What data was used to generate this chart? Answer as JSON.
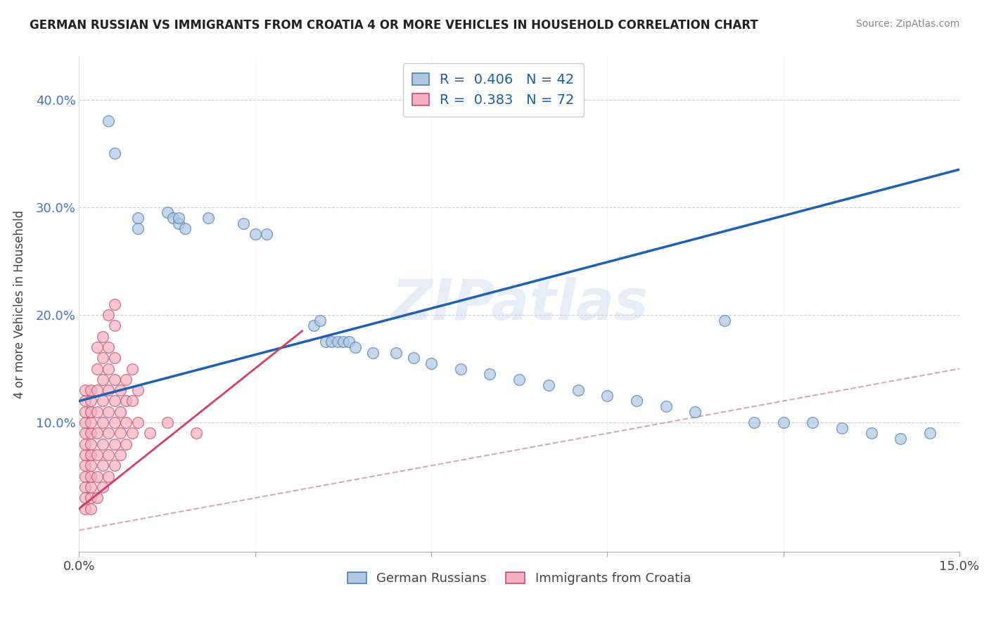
{
  "title": "GERMAN RUSSIAN VS IMMIGRANTS FROM CROATIA 4 OR MORE VEHICLES IN HOUSEHOLD CORRELATION CHART",
  "source": "Source: ZipAtlas.com",
  "ylabel": "4 or more Vehicles in Household",
  "xlim": [
    0,
    0.15
  ],
  "ylim": [
    -0.02,
    0.44
  ],
  "blue_color": "#aec6e0",
  "pink_color": "#f5afc0",
  "blue_edge_color": "#5080b0",
  "pink_edge_color": "#c05070",
  "blue_line_color": "#2060b0",
  "pink_line_color": "#d04060",
  "diag_color": "#d0a0b0",
  "watermark": "ZIPatlas",
  "legend_blue_label": "R =  0.406   N = 42",
  "legend_pink_label": "R =  0.383   N = 72",
  "legend_title_blue": "German Russians",
  "legend_title_pink": "Immigrants from Croatia",
  "background_color": "#ffffff",
  "grid_color": "#cccccc",
  "blue_scatter": [
    [
      0.005,
      0.38
    ],
    [
      0.006,
      0.35
    ],
    [
      0.01,
      0.29
    ],
    [
      0.01,
      0.28
    ],
    [
      0.015,
      0.295
    ],
    [
      0.016,
      0.29
    ],
    [
      0.017,
      0.285
    ],
    [
      0.017,
      0.29
    ],
    [
      0.018,
      0.28
    ],
    [
      0.022,
      0.29
    ],
    [
      0.028,
      0.285
    ],
    [
      0.03,
      0.275
    ],
    [
      0.032,
      0.275
    ],
    [
      0.04,
      0.19
    ],
    [
      0.041,
      0.195
    ],
    [
      0.042,
      0.175
    ],
    [
      0.043,
      0.175
    ],
    [
      0.044,
      0.175
    ],
    [
      0.045,
      0.175
    ],
    [
      0.046,
      0.175
    ],
    [
      0.047,
      0.17
    ],
    [
      0.05,
      0.165
    ],
    [
      0.054,
      0.165
    ],
    [
      0.057,
      0.16
    ],
    [
      0.06,
      0.155
    ],
    [
      0.065,
      0.15
    ],
    [
      0.07,
      0.145
    ],
    [
      0.075,
      0.14
    ],
    [
      0.08,
      0.135
    ],
    [
      0.085,
      0.13
    ],
    [
      0.09,
      0.125
    ],
    [
      0.095,
      0.12
    ],
    [
      0.1,
      0.115
    ],
    [
      0.105,
      0.11
    ],
    [
      0.11,
      0.195
    ],
    [
      0.115,
      0.1
    ],
    [
      0.12,
      0.1
    ],
    [
      0.125,
      0.1
    ],
    [
      0.13,
      0.095
    ],
    [
      0.135,
      0.09
    ],
    [
      0.14,
      0.085
    ],
    [
      0.145,
      0.09
    ]
  ],
  "pink_scatter": [
    [
      0.001,
      0.05
    ],
    [
      0.001,
      0.06
    ],
    [
      0.001,
      0.04
    ],
    [
      0.001,
      0.03
    ],
    [
      0.001,
      0.02
    ],
    [
      0.001,
      0.07
    ],
    [
      0.001,
      0.08
    ],
    [
      0.001,
      0.09
    ],
    [
      0.001,
      0.1
    ],
    [
      0.001,
      0.11
    ],
    [
      0.001,
      0.12
    ],
    [
      0.001,
      0.13
    ],
    [
      0.002,
      0.02
    ],
    [
      0.002,
      0.03
    ],
    [
      0.002,
      0.04
    ],
    [
      0.002,
      0.05
    ],
    [
      0.002,
      0.06
    ],
    [
      0.002,
      0.07
    ],
    [
      0.002,
      0.08
    ],
    [
      0.002,
      0.09
    ],
    [
      0.002,
      0.1
    ],
    [
      0.002,
      0.11
    ],
    [
      0.002,
      0.12
    ],
    [
      0.002,
      0.13
    ],
    [
      0.003,
      0.03
    ],
    [
      0.003,
      0.05
    ],
    [
      0.003,
      0.07
    ],
    [
      0.003,
      0.09
    ],
    [
      0.003,
      0.11
    ],
    [
      0.003,
      0.13
    ],
    [
      0.003,
      0.15
    ],
    [
      0.003,
      0.17
    ],
    [
      0.004,
      0.04
    ],
    [
      0.004,
      0.06
    ],
    [
      0.004,
      0.08
    ],
    [
      0.004,
      0.1
    ],
    [
      0.004,
      0.12
    ],
    [
      0.004,
      0.14
    ],
    [
      0.004,
      0.16
    ],
    [
      0.004,
      0.18
    ],
    [
      0.005,
      0.05
    ],
    [
      0.005,
      0.07
    ],
    [
      0.005,
      0.09
    ],
    [
      0.005,
      0.11
    ],
    [
      0.005,
      0.13
    ],
    [
      0.005,
      0.15
    ],
    [
      0.005,
      0.17
    ],
    [
      0.005,
      0.2
    ],
    [
      0.006,
      0.06
    ],
    [
      0.006,
      0.08
    ],
    [
      0.006,
      0.1
    ],
    [
      0.006,
      0.12
    ],
    [
      0.006,
      0.14
    ],
    [
      0.006,
      0.16
    ],
    [
      0.006,
      0.19
    ],
    [
      0.006,
      0.21
    ],
    [
      0.007,
      0.07
    ],
    [
      0.007,
      0.09
    ],
    [
      0.007,
      0.11
    ],
    [
      0.007,
      0.13
    ],
    [
      0.008,
      0.08
    ],
    [
      0.008,
      0.1
    ],
    [
      0.008,
      0.12
    ],
    [
      0.008,
      0.14
    ],
    [
      0.009,
      0.09
    ],
    [
      0.009,
      0.12
    ],
    [
      0.009,
      0.15
    ],
    [
      0.01,
      0.1
    ],
    [
      0.01,
      0.13
    ],
    [
      0.012,
      0.09
    ],
    [
      0.015,
      0.1
    ],
    [
      0.02,
      0.09
    ]
  ]
}
